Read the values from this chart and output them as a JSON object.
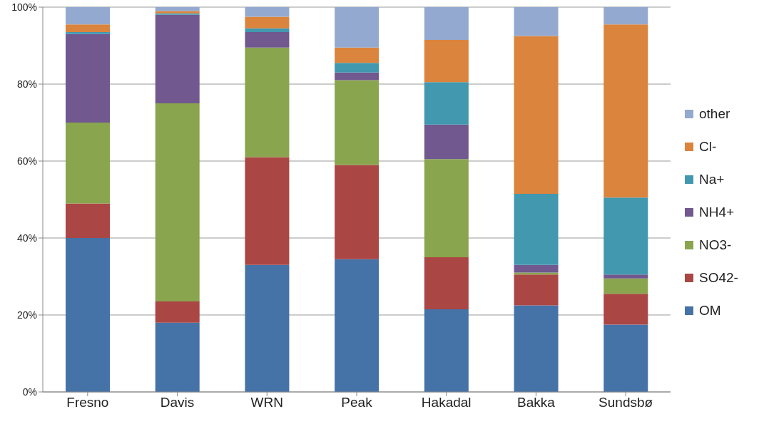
{
  "chart_data": {
    "type": "bar",
    "stacked": true,
    "categories": [
      "Fresno",
      "Davis",
      "WRN",
      "Peak",
      "Hakadal",
      "Bakka",
      "Sundsbø"
    ],
    "series": [
      {
        "name": "OM",
        "color": "#4572a7",
        "values": [
          40,
          18,
          33,
          34.5,
          21.5,
          22.5,
          17.5
        ]
      },
      {
        "name": "SO42-",
        "color": "#aa4643",
        "values": [
          9,
          5.5,
          28,
          24.5,
          13.5,
          8,
          8
        ]
      },
      {
        "name": "NO3-",
        "color": "#89a54e",
        "values": [
          21,
          51.5,
          28.5,
          22,
          25.5,
          0.5,
          4
        ]
      },
      {
        "name": "NH4+",
        "color": "#71588f",
        "values": [
          23,
          23,
          4,
          2,
          9,
          2,
          1
        ]
      },
      {
        "name": "Na+",
        "color": "#4198af",
        "values": [
          0.5,
          0.4,
          1,
          2.5,
          11,
          18.5,
          20
        ]
      },
      {
        "name": "Cl-",
        "color": "#db843d",
        "values": [
          2,
          0.6,
          3,
          4,
          11,
          41,
          45
        ]
      },
      {
        "name": "other",
        "color": "#93a9cf",
        "values": [
          4.5,
          1,
          2.5,
          10.5,
          8.5,
          7.5,
          4.5
        ]
      }
    ],
    "ylim": [
      0,
      100
    ],
    "yticks": [
      {
        "value": 0,
        "label": "0%"
      },
      {
        "value": 20,
        "label": "20%"
      },
      {
        "value": 40,
        "label": "40%"
      },
      {
        "value": 60,
        "label": "60%"
      },
      {
        "value": 80,
        "label": "80%"
      },
      {
        "value": 100,
        "label": "100%"
      }
    ],
    "grid": "y",
    "legend": "right"
  }
}
